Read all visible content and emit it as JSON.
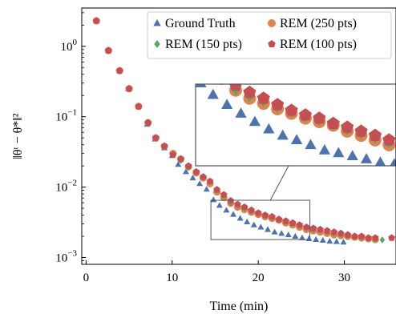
{
  "chart_data": {
    "type": "scatter",
    "xlabel": "Time (min)",
    "ylabel": "‖θᵗ − θ*‖²",
    "xlim": [
      -0.5,
      36
    ],
    "ylim": [
      0.0008,
      3.5
    ],
    "yscale": "log",
    "grid": false,
    "legend_position": "top-right",
    "inset": {
      "xlim": [
        14.5,
        26
      ],
      "ylim": [
        0.0018,
        0.0065
      ],
      "position": "upper-middle",
      "connector_lines": true
    },
    "x_ticks": [
      0,
      10,
      20,
      30
    ],
    "x_tick_labels": [
      "0",
      "10",
      "20",
      "30"
    ],
    "y_ticks": [
      1,
      0.1,
      0.01,
      0.001
    ],
    "y_tick_labels": [
      {
        "base": "10",
        "exp": "0"
      },
      {
        "base": "10",
        "exp": "−1"
      },
      {
        "base": "10",
        "exp": "−2"
      },
      {
        "base": "10",
        "exp": "−3"
      }
    ],
    "series": [
      {
        "name": "Ground Truth",
        "marker": "triangle",
        "color": "#4c72b0",
        "x": [
          1.2,
          2.6,
          3.9,
          4.9,
          6.1,
          7.1,
          8.0,
          9.1,
          10.0,
          10.7,
          11.6,
          12.4,
          13.2,
          14.0,
          14.8,
          15.5,
          16.3,
          17.1,
          17.9,
          18.7,
          19.5,
          20.3,
          21.1,
          21.9,
          22.7,
          23.5,
          24.3,
          25.1,
          25.9,
          26.7,
          27.5,
          28.3,
          29.1,
          29.9
        ],
        "y": [
          2.3,
          0.87,
          0.45,
          0.25,
          0.14,
          0.078,
          0.048,
          0.036,
          0.028,
          0.021,
          0.0165,
          0.0135,
          0.0112,
          0.0093,
          0.0066,
          0.0055,
          0.0047,
          0.0041,
          0.0036,
          0.0032,
          0.0029,
          0.0027,
          0.0025,
          0.0023,
          0.0022,
          0.0021,
          0.002,
          0.0019,
          0.00185,
          0.0018,
          0.00175,
          0.0017,
          0.00168,
          0.00165
        ]
      },
      {
        "name": "REM (250 pts)",
        "marker": "circle",
        "color": "#dd8452",
        "x": [
          1.2,
          2.6,
          3.9,
          5.0,
          6.1,
          7.2,
          8.1,
          9.1,
          10.1,
          11.0,
          11.9,
          12.8,
          13.6,
          14.4,
          15.2,
          16.0,
          16.8,
          17.6,
          18.4,
          19.2,
          20.0,
          20.8,
          21.6,
          22.4,
          23.2,
          24.0,
          24.8,
          25.6,
          26.4,
          27.2,
          28.0,
          28.8,
          29.6,
          30.4,
          31.2,
          32.0,
          32.8,
          33.6
        ],
        "y": [
          2.3,
          0.87,
          0.45,
          0.25,
          0.14,
          0.082,
          0.05,
          0.038,
          0.03,
          0.025,
          0.0195,
          0.016,
          0.0135,
          0.0112,
          0.0085,
          0.0071,
          0.0059,
          0.0052,
          0.0048,
          0.0044,
          0.0041,
          0.0038,
          0.0036,
          0.0034,
          0.0031,
          0.0029,
          0.0027,
          0.0025,
          0.0024,
          0.0023,
          0.0022,
          0.0021,
          0.00205,
          0.002,
          0.00195,
          0.0019,
          0.00185,
          0.0018
        ]
      },
      {
        "name": "REM (150 pts)",
        "marker": "diamond",
        "color": "#55a868",
        "x": [
          1.2,
          2.6,
          3.9,
          5.0,
          6.1,
          7.2,
          8.1,
          9.1,
          10.1,
          11.0,
          11.9,
          12.8,
          13.6,
          14.4,
          15.2,
          16.0,
          16.8,
          17.6,
          18.4,
          19.2,
          20.0,
          20.8,
          21.6,
          22.4,
          23.2,
          24.0,
          24.8,
          25.6,
          26.4,
          27.2,
          28.0,
          28.8,
          29.6,
          30.4,
          31.2,
          32.0,
          32.8,
          33.6,
          34.4
        ],
        "y": [
          2.3,
          0.87,
          0.45,
          0.25,
          0.14,
          0.08,
          0.049,
          0.037,
          0.029,
          0.024,
          0.019,
          0.0158,
          0.0138,
          0.0118,
          0.0088,
          0.0074,
          0.006,
          0.0054,
          0.005,
          0.0045,
          0.0042,
          0.0039,
          0.0037,
          0.0034,
          0.0032,
          0.003,
          0.0028,
          0.0026,
          0.0025,
          0.0024,
          0.0023,
          0.0022,
          0.0021,
          0.002,
          0.00195,
          0.0019,
          0.00185,
          0.0018,
          0.00178
        ]
      },
      {
        "name": "REM (100 pts)",
        "marker": "pentagon",
        "color": "#c44e52",
        "x": [
          1.2,
          2.6,
          3.9,
          5.0,
          6.1,
          7.2,
          8.1,
          9.1,
          10.1,
          11.0,
          11.9,
          12.8,
          13.6,
          14.4,
          15.2,
          16.0,
          16.8,
          17.6,
          18.4,
          19.2,
          20.0,
          20.8,
          21.6,
          22.4,
          23.2,
          24.0,
          24.8,
          25.6,
          26.4,
          27.2,
          28.0,
          28.8,
          29.6,
          30.4,
          31.2,
          32.0,
          32.8,
          33.6,
          35.5
        ],
        "y": [
          2.3,
          0.87,
          0.45,
          0.25,
          0.14,
          0.082,
          0.05,
          0.038,
          0.029,
          0.025,
          0.02,
          0.0165,
          0.014,
          0.0121,
          0.0092,
          0.0078,
          0.0064,
          0.0057,
          0.0052,
          0.0047,
          0.0043,
          0.004,
          0.0038,
          0.0035,
          0.0033,
          0.0031,
          0.0029,
          0.0027,
          0.0026,
          0.0025,
          0.0024,
          0.0023,
          0.0022,
          0.0021,
          0.002,
          0.002,
          0.0019,
          0.0019,
          0.0019
        ]
      }
    ]
  }
}
